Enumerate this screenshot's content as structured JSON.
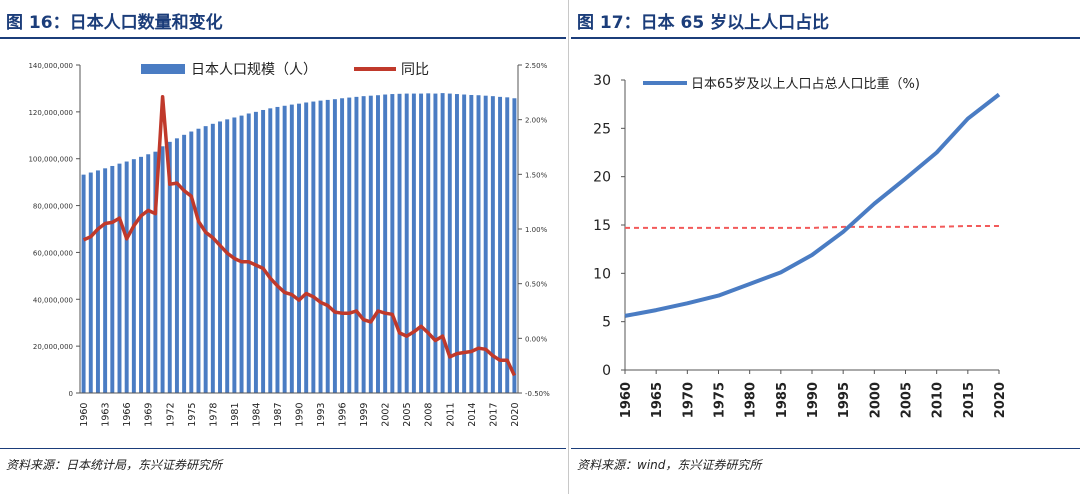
{
  "left": {
    "title": "图 16：日本人口数量和变化",
    "source": "资料来源：日本统计局，东兴证券研究所"
  },
  "right": {
    "title": "图 17：日本 65 岁以上人口占比",
    "source": "资料来源：wind，东兴证券研究所"
  },
  "colors": {
    "title": "#1b3d7a",
    "bar": "#4a7cc3",
    "growth": "#c0392b",
    "line65": "#4a7cc3",
    "ref": "#f25a5a"
  },
  "chart_data": [
    {
      "type": "bar",
      "title": "",
      "legend_position": "top",
      "legend": [
        "日本人口规模（人）",
        "同比"
      ],
      "ylim": [
        0,
        140000000
      ],
      "y_ticks": [
        0,
        20000000,
        40000000,
        60000000,
        80000000,
        100000000,
        120000000,
        140000000
      ],
      "y_tick_labels": [
        "0",
        "20,000,000",
        "40,000,000",
        "60,000,000",
        "80,000,000",
        "100,000,000",
        "120,000,000",
        "140,000,000"
      ],
      "y2lim": [
        -0.5,
        2.5
      ],
      "y2_ticks": [
        -0.5,
        0,
        0.5,
        1,
        1.5,
        2,
        2.5
      ],
      "y2_tick_labels": [
        "-0.50%",
        "0.00%",
        "0.50%",
        "1.00%",
        "1.50%",
        "2.00%",
        "2.50%"
      ],
      "x_tick_labels": [
        "1960",
        "1963",
        "1966",
        "1969",
        "1972",
        "1975",
        "1978",
        "1981",
        "1984",
        "1987",
        "1990",
        "1993",
        "1996",
        "1999",
        "2002",
        "2005",
        "2008",
        "2011",
        "2014",
        "2017",
        "2020"
      ],
      "years": [
        1960,
        1961,
        1962,
        1963,
        1964,
        1965,
        1966,
        1967,
        1968,
        1969,
        1970,
        1971,
        1972,
        1973,
        1974,
        1975,
        1976,
        1977,
        1978,
        1979,
        1980,
        1981,
        1982,
        1983,
        1984,
        1985,
        1986,
        1987,
        1988,
        1989,
        1990,
        1991,
        1992,
        1993,
        1994,
        1995,
        1996,
        1997,
        1998,
        1999,
        2000,
        2001,
        2002,
        2003,
        2004,
        2005,
        2006,
        2007,
        2008,
        2009,
        2010,
        2011,
        2012,
        2013,
        2014,
        2015,
        2016,
        2017,
        2018,
        2019,
        2020
      ],
      "series": [
        {
          "name": "日本人口规模（人）",
          "kind": "bar",
          "values": [
            93200000,
            94100000,
            95000000,
            95900000,
            96900000,
            97900000,
            98800000,
            99800000,
            100800000,
            101900000,
            103000000,
            105300000,
            107200000,
            108700000,
            110200000,
            111600000,
            112800000,
            113900000,
            114900000,
            115900000,
            116800000,
            117600000,
            118400000,
            119300000,
            120000000,
            120800000,
            121500000,
            122100000,
            122600000,
            123100000,
            123500000,
            124000000,
            124400000,
            124800000,
            125100000,
            125400000,
            125800000,
            126100000,
            126400000,
            126700000,
            126900000,
            127100000,
            127400000,
            127600000,
            127700000,
            127800000,
            127800000,
            127800000,
            127900000,
            127800000,
            128000000,
            127800000,
            127600000,
            127400000,
            127200000,
            127100000,
            126900000,
            126700000,
            126400000,
            126200000,
            125800000
          ]
        },
        {
          "name": "同比",
          "kind": "line",
          "axis": "right",
          "values": [
            0.9,
            0.93,
            1.0,
            1.05,
            1.06,
            1.1,
            0.91,
            1.03,
            1.12,
            1.17,
            1.14,
            2.21,
            1.41,
            1.42,
            1.35,
            1.3,
            1.07,
            0.97,
            0.92,
            0.85,
            0.78,
            0.73,
            0.7,
            0.7,
            0.67,
            0.64,
            0.55,
            0.48,
            0.42,
            0.4,
            0.35,
            0.41,
            0.38,
            0.33,
            0.3,
            0.24,
            0.23,
            0.23,
            0.25,
            0.17,
            0.15,
            0.25,
            0.23,
            0.22,
            0.05,
            0.02,
            0.06,
            0.11,
            0.05,
            -0.02,
            0.02,
            -0.17,
            -0.14,
            -0.13,
            -0.12,
            -0.09,
            -0.1,
            -0.16,
            -0.2,
            -0.2,
            -0.34
          ]
        }
      ]
    },
    {
      "type": "line",
      "title": "",
      "legend_position": "top",
      "legend": [
        "日本65岁及以上人口占总人口比重（%)"
      ],
      "ylim": [
        0,
        30
      ],
      "y_ticks": [
        0,
        5,
        10,
        15,
        20,
        25,
        30
      ],
      "y_tick_labels": [
        "0",
        "5",
        "10",
        "15",
        "20",
        "25",
        "30"
      ],
      "x_tick_labels": [
        "1960",
        "1965",
        "1970",
        "1975",
        "1980",
        "1985",
        "1990",
        "1995",
        "2000",
        "2005",
        "2010",
        "2015",
        "2020"
      ],
      "x": [
        1960,
        1965,
        1970,
        1975,
        1980,
        1985,
        1990,
        1995,
        2000,
        2005,
        2010,
        2015,
        2020
      ],
      "series": [
        {
          "name": "日本65岁及以上人口占总人口比重（%)",
          "values": [
            5.6,
            6.2,
            6.9,
            7.7,
            8.9,
            10.1,
            11.9,
            14.3,
            17.2,
            19.8,
            22.5,
            26.0,
            28.5
          ]
        },
        {
          "name": "reference",
          "dashed": true,
          "values": [
            14.7,
            14.7,
            14.7,
            14.7,
            14.7,
            14.7,
            14.7,
            14.8,
            14.8,
            14.8,
            14.8,
            14.9,
            14.9
          ]
        }
      ]
    }
  ]
}
